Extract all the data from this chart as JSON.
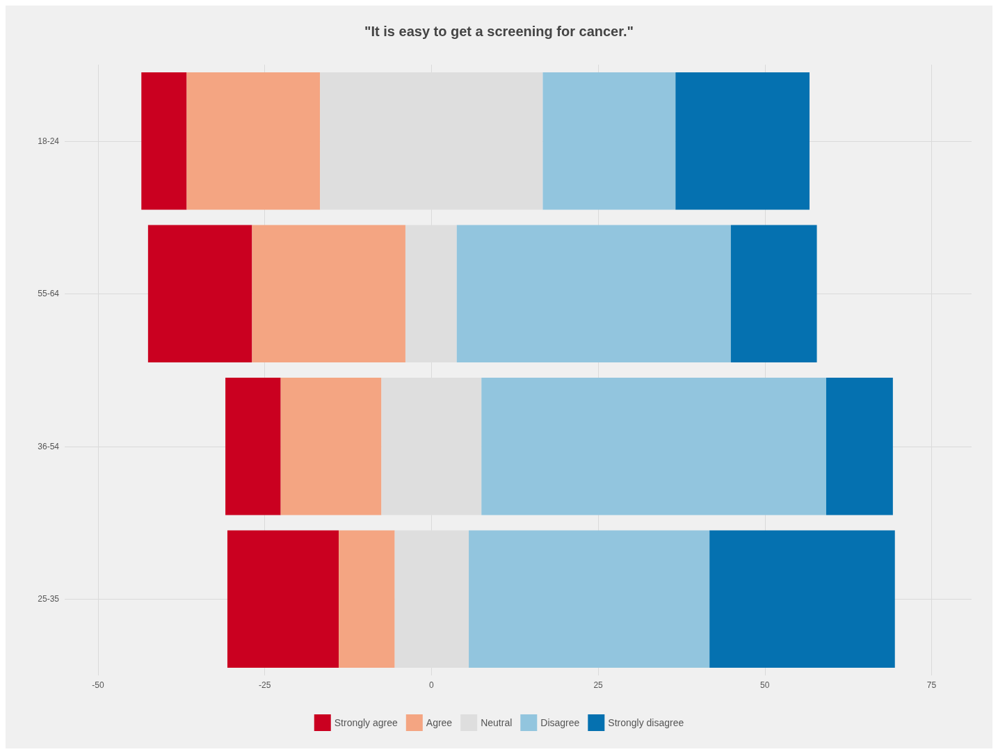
{
  "chart_data": {
    "type": "bar",
    "title": "\"It is easy to get a screening for cancer.\"",
    "orientation": "horizontal",
    "categories": [
      "18-24",
      "55-64",
      "36-54",
      "25-35"
    ],
    "series": [
      {
        "name": "Strongly agree",
        "color": "#ca0020",
        "values": [
          6.8,
          15.6,
          8.3,
          16.7
        ],
        "base": [
          -43.5,
          -42.5,
          -30.9,
          -30.6
        ]
      },
      {
        "name": "Agree",
        "color": "#f4a582",
        "values": [
          20,
          23,
          15.1,
          8.4
        ],
        "base": [
          -36.7,
          -26.9,
          -22.6,
          -13.9
        ]
      },
      {
        "name": "Neutral",
        "color": "#dedede",
        "values": [
          33.4,
          7.7,
          15,
          11.1
        ],
        "base": [
          -16.7,
          -3.9,
          -7.5,
          -5.5
        ]
      },
      {
        "name": "Disagree",
        "color": "#92c5de",
        "values": [
          19.9,
          41.1,
          51.7,
          36.1
        ],
        "base": [
          16.7,
          3.8,
          7.5,
          5.6
        ]
      },
      {
        "name": "Strongly disagree",
        "color": "#0571b0",
        "values": [
          20.1,
          12.9,
          10,
          27.8
        ],
        "base": [
          36.6,
          44.9,
          59.2,
          41.7
        ]
      }
    ],
    "xlim": [
      -55,
      81
    ],
    "xticks": [
      -50,
      -25,
      0,
      25,
      50,
      75
    ],
    "grid": true,
    "legend": "bottom"
  }
}
